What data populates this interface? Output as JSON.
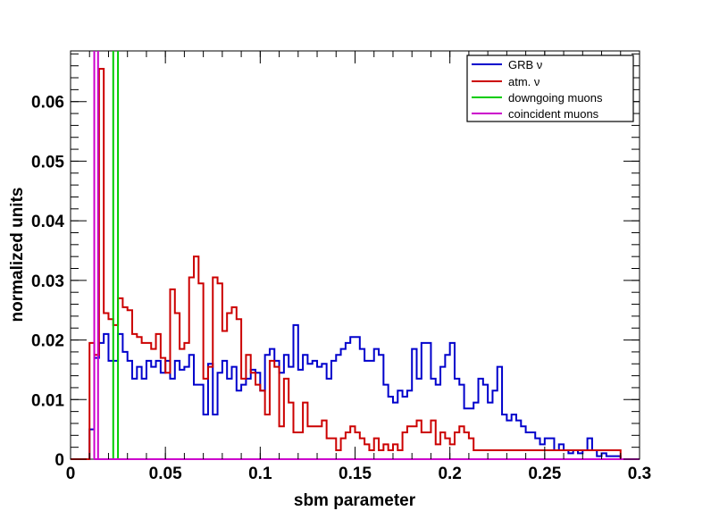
{
  "chart_data": {
    "type": "histogram",
    "xlabel": "sbm parameter",
    "ylabel": "normalized units",
    "xlim": [
      0,
      0.3
    ],
    "ylim": [
      0,
      0.0685
    ],
    "bin_width": 0.0025,
    "x_ticks": [
      0,
      0.05,
      0.1,
      0.15,
      0.2,
      0.25,
      0.3
    ],
    "x_tick_labels": [
      "0",
      "0.05",
      "0.1",
      "0.15",
      "0.2",
      "0.25",
      "0.3"
    ],
    "y_ticks": [
      0,
      0.01,
      0.02,
      0.03,
      0.04,
      0.05,
      0.06
    ],
    "y_tick_labels": [
      "0",
      "0.01",
      "0.02",
      "0.03",
      "0.04",
      "0.05",
      "0.06"
    ],
    "grid": false,
    "legend_position": "top-right",
    "series": [
      {
        "name": "GRB ν",
        "color": "#0000cc",
        "values": [
          0,
          0,
          0,
          0,
          0.005,
          0.017,
          0.0195,
          0.021,
          0.0165,
          0.0165,
          0.021,
          0.018,
          0.0165,
          0.0135,
          0.0155,
          0.0135,
          0.0165,
          0.0155,
          0.0165,
          0.0145,
          0.0165,
          0.0135,
          0.0165,
          0.015,
          0.0155,
          0.0175,
          0.0125,
          0.0125,
          0.0075,
          0.016,
          0.0075,
          0.0145,
          0.0165,
          0.0135,
          0.0155,
          0.0115,
          0.0125,
          0.0135,
          0.015,
          0.0145,
          0.0115,
          0.0175,
          0.0185,
          0.0165,
          0.0145,
          0.0175,
          0.0155,
          0.0225,
          0.015,
          0.0175,
          0.016,
          0.0165,
          0.0155,
          0.016,
          0.0135,
          0.0165,
          0.0175,
          0.0185,
          0.0195,
          0.0205,
          0.0205,
          0.0185,
          0.0165,
          0.0165,
          0.0185,
          0.0175,
          0.0125,
          0.0105,
          0.0095,
          0.0115,
          0.0105,
          0.0115,
          0.0185,
          0.0135,
          0.0195,
          0.0195,
          0.0135,
          0.0125,
          0.0155,
          0.0175,
          0.0195,
          0.0135,
          0.0125,
          0.0085,
          0.0085,
          0.0095,
          0.0135,
          0.0125,
          0.0095,
          0.0115,
          0.0155,
          0.0075,
          0.0065,
          0.0075,
          0.0065,
          0.0055,
          0.0045,
          0.0045,
          0.0035,
          0.0025,
          0.0035,
          0.0035,
          0.0015,
          0.0025,
          0.0015,
          0.001,
          0.0015,
          0.001,
          0.0015,
          0.0035,
          0.0015,
          0.0005,
          0.001,
          0.0005,
          0.0005,
          0.0005,
          0,
          0,
          0,
          0
        ]
      },
      {
        "name": "atm. ν",
        "color": "#cc0000",
        "values": [
          0,
          0,
          0,
          0,
          0.0195,
          0.0175,
          0.0655,
          0.0245,
          0.0235,
          0.0225,
          0.027,
          0.0255,
          0.025,
          0.021,
          0.0205,
          0.0195,
          0.0195,
          0.0185,
          0.021,
          0.017,
          0.0145,
          0.0285,
          0.0245,
          0.0185,
          0.0195,
          0.0305,
          0.034,
          0.0295,
          0.0135,
          0.0155,
          0.0305,
          0.0295,
          0.0215,
          0.0245,
          0.0255,
          0.0235,
          0.0135,
          0.0175,
          0.0145,
          0.0125,
          0.0115,
          0.0075,
          0.0165,
          0.0155,
          0.0055,
          0.0135,
          0.0095,
          0.0045,
          0.0045,
          0.0095,
          0.0055,
          0.0055,
          0.0055,
          0.0065,
          0.0035,
          0.0035,
          0.0015,
          0.0035,
          0.0045,
          0.0055,
          0.0045,
          0.0035,
          0.0025,
          0.0015,
          0.0035,
          0.0015,
          0.0025,
          0.0015,
          0.0025,
          0.0015,
          0.0045,
          0.0055,
          0.0055,
          0.0065,
          0.0045,
          0.0045,
          0.0065,
          0.0025,
          0.0045,
          0.0035,
          0.0025,
          0.0045,
          0.0055,
          0.0045,
          0.0035,
          0.0015,
          0.0015,
          0.0015,
          0.0015,
          0.0015,
          0.0015,
          0.0015,
          0.0015,
          0.0015,
          0.0015,
          0.0015,
          0.0015,
          0.0015,
          0.0015,
          0.0015,
          0.0015,
          0.0015,
          0.0015,
          0.0015,
          0.0015,
          0.0015,
          0.0015,
          0.0015,
          0.0015,
          0.0015,
          0.0015,
          0.0015,
          0.0015,
          0.0015,
          0.0015,
          0.0015,
          0,
          0,
          0,
          0
        ]
      },
      {
        "name": "downgoing muons",
        "color": "#00cc00",
        "vlines": [
          0.0225,
          0.025
        ]
      },
      {
        "name": "coincident muons",
        "color": "#cc00cc",
        "vlines": [
          0.0125,
          0.0145
        ]
      }
    ]
  }
}
